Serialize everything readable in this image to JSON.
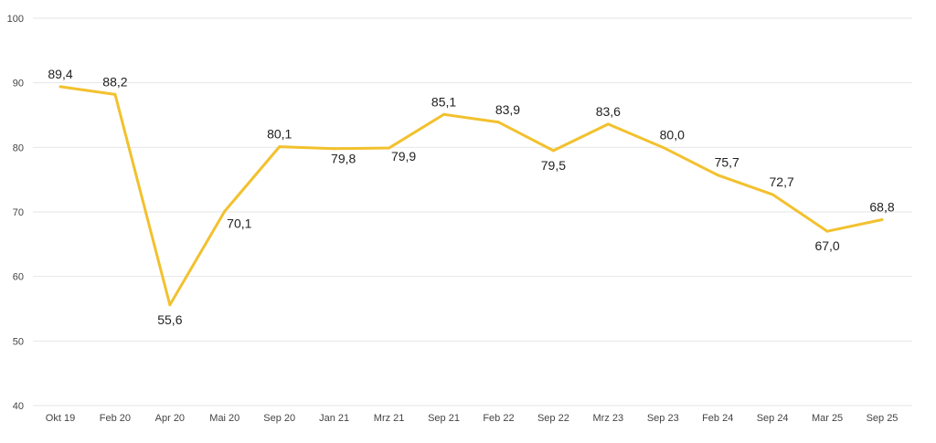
{
  "chart_data": {
    "type": "line",
    "title": "",
    "xlabel": "",
    "ylabel": "",
    "ylim": [
      40,
      100
    ],
    "yticks": [
      40,
      50,
      60,
      70,
      80,
      90,
      100
    ],
    "grid": true,
    "legend": "none",
    "categories": [
      "Okt 19",
      "Feb 20",
      "Apr 20",
      "Mai 20",
      "Sep 20",
      "Jan 21",
      "Mrz 21",
      "Sep 21",
      "Feb 22",
      "Sep 22",
      "Mrz 23",
      "Sep 23",
      "Feb 24",
      "Sep 24",
      "Mar 25",
      "Sep 25"
    ],
    "series": [
      {
        "name": "Index",
        "color": "#F2C12E",
        "values": [
          89.4,
          88.2,
          55.6,
          70.1,
          80.1,
          79.8,
          79.9,
          85.1,
          83.9,
          79.5,
          83.6,
          80.0,
          75.7,
          72.7,
          67.0,
          68.8
        ],
        "labels": [
          "89,4",
          "88,2",
          "55,6",
          "70,1",
          "80,1",
          "79,8",
          "79,9",
          "85,1",
          "83,9",
          "79,5",
          "83,6",
          "80,0",
          "75,7",
          "72,7",
          "67,0",
          "68,8"
        ]
      }
    ]
  }
}
